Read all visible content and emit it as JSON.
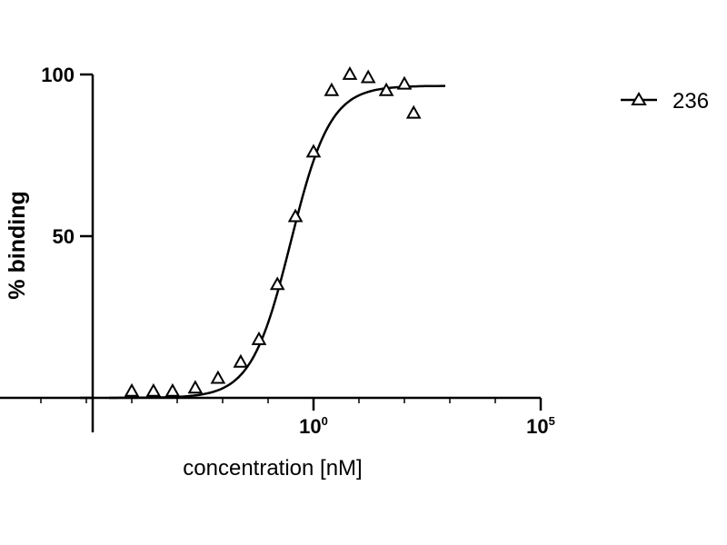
{
  "chart_data": {
    "type": "scatter",
    "title": "",
    "xlabel": "concentration [nM]",
    "ylabel": "% binding",
    "x_scale": "log",
    "xlim": [
      1e-05,
      100000
    ],
    "ylim": [
      0,
      100
    ],
    "y_ticks": [
      {
        "value": 0,
        "label": ""
      },
      {
        "value": 50,
        "label": "50"
      },
      {
        "value": 100,
        "label": "100"
      }
    ],
    "x_ticks": [
      {
        "value": 1,
        "base": "10",
        "exp": "0"
      },
      {
        "value": 100000,
        "base": "10",
        "exp": "5"
      }
    ],
    "grid": false,
    "legend": "top-right",
    "series": [
      {
        "name": "236",
        "marker": "open-triangle",
        "color": "#000000",
        "x": [
          0.0001,
          0.0003,
          0.00079,
          0.0025,
          0.0079,
          0.025,
          0.063,
          0.16,
          0.4,
          1.0,
          2.5,
          6.3,
          16,
          40,
          100,
          160
        ],
        "y": [
          2,
          2,
          2,
          3,
          6,
          11,
          18,
          35,
          56,
          76,
          95,
          100,
          99,
          95,
          97,
          88
        ]
      }
    ],
    "fit": {
      "type": "sigmoidal dose-response",
      "bottom": 0,
      "top": 96.5,
      "log_ec50": -0.5,
      "hill_slope": 1.0
    }
  }
}
